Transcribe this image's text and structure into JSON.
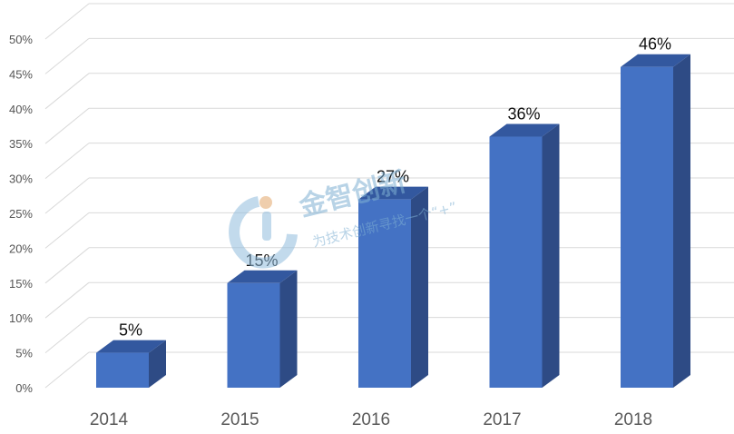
{
  "chart_data": {
    "type": "bar",
    "categories": [
      "2014",
      "2015",
      "2016",
      "2017",
      "2018"
    ],
    "values": [
      5,
      15,
      27,
      36,
      46
    ],
    "value_labels": [
      "5%",
      "15%",
      "27%",
      "36%",
      "46%"
    ],
    "title": "",
    "xlabel": "",
    "ylabel": "",
    "ylim": [
      0,
      50
    ],
    "y_ticks": [
      "0%",
      "5%",
      "10%",
      "15%",
      "20%",
      "25%",
      "30%",
      "35%",
      "40%",
      "45%",
      "50%"
    ],
    "style": "3d",
    "grid": true,
    "legend": "none",
    "colors": {
      "bar_front": "#4472c4",
      "bar_side": "#2e4b85",
      "bar_top": "#33589f",
      "grid": "#d9d9d9"
    }
  },
  "watermark": {
    "title": "金智创新",
    "subtitle": "为技术创新寻找一个“+”"
  }
}
